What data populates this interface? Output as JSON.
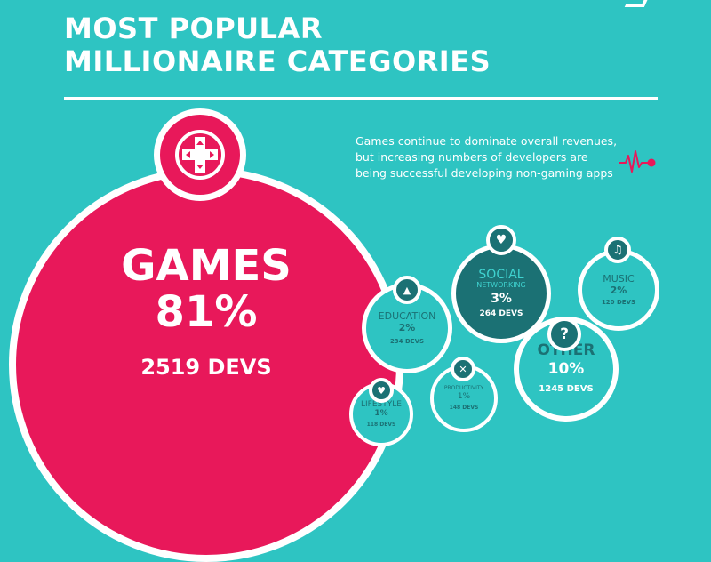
{
  "header": {
    "title_line1": "MOST POPULAR",
    "title_line2": "MILLIONAIRE CATEGORIES"
  },
  "note": {
    "text": "Games continue to dominate overall revenues, but increasing numbers of developers are being successful developing non-gaming apps"
  },
  "icons": {
    "games": "gamepad-icon",
    "social": "heart-icon",
    "music": "headphones-icon",
    "education": "graduation-cap-icon",
    "other": "question-mark-icon",
    "productivity": "tools-icon",
    "lifestyle": "heart-icon",
    "note": "heartbeat-line-icon"
  },
  "icon_glyphs": {
    "social": "♥",
    "music": "♫",
    "education": "▲",
    "other": "?",
    "productivity": "✕",
    "lifestyle": "♥"
  },
  "colors": {
    "background": "#2ec4c2",
    "games": "#e8185a",
    "dark_teal": "#1b7174",
    "white": "#ffffff"
  },
  "chart_data": {
    "type": "bubble",
    "unit": "%",
    "categories": [
      {
        "name": "GAMES",
        "percent": 81,
        "percent_label": "81%",
        "devs": 2519,
        "devs_label": "2519 DEVS"
      },
      {
        "name": "SOCIAL NETWORKING",
        "name_line1": "SOCIAL",
        "name_line2": "NETWORKING",
        "percent": 3,
        "percent_label": "3%",
        "devs": 264,
        "devs_label": "264 DEVS"
      },
      {
        "name": "MUSIC",
        "percent": 2,
        "percent_label": "2%",
        "devs": 120,
        "devs_label": "120 DEVS"
      },
      {
        "name": "EDUCATION",
        "percent": 2,
        "percent_label": "2%",
        "devs": 234,
        "devs_label": "234 DEVS"
      },
      {
        "name": "OTHER",
        "percent": 10,
        "percent_label": "10%",
        "devs": 1245,
        "devs_label": "1245 DEVS"
      },
      {
        "name": "PRODUCTIVITY",
        "percent": 1,
        "percent_label": "1%",
        "devs": 148,
        "devs_label": "148 DEVS"
      },
      {
        "name": "LIFESTYLE",
        "percent": 1,
        "percent_label": "1%",
        "devs": 118,
        "devs_label": "118 DEVS"
      }
    ]
  }
}
